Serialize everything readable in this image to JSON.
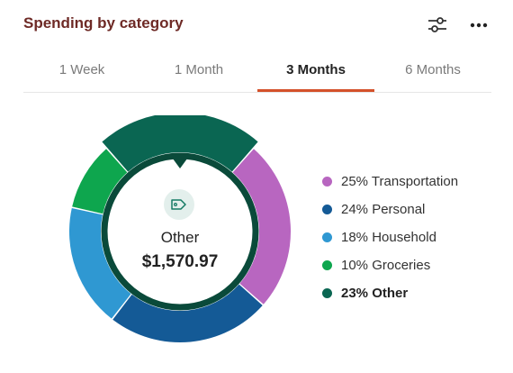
{
  "card": {
    "title": "Spending by category"
  },
  "tabs": [
    {
      "label": "1 Week",
      "active": false
    },
    {
      "label": "1 Month",
      "active": false
    },
    {
      "label": "3 Months",
      "active": true
    },
    {
      "label": "6 Months",
      "active": false
    }
  ],
  "selected": {
    "label": "Other",
    "amount": "$1,570.97",
    "icon": "tag-icon"
  },
  "legend": [
    {
      "text": "25% Transportation",
      "color": "#b866c0"
    },
    {
      "text": "24% Personal",
      "color": "#145a96"
    },
    {
      "text": "18% Household",
      "color": "#2f98d2"
    },
    {
      "text": "10% Groceries",
      "color": "#0ea64e"
    },
    {
      "text": "23% Other",
      "color": "#0a6652",
      "selected": true
    }
  ],
  "colors": {
    "accent": "#d4512a",
    "title": "#6e2a26",
    "ring_inner": "#0a4a3a"
  },
  "chart_data": {
    "type": "pie",
    "categories": [
      "Transportation",
      "Personal",
      "Household",
      "Groceries",
      "Other"
    ],
    "values": [
      25,
      24,
      18,
      10,
      23
    ],
    "colors": [
      "#b866c0",
      "#145a96",
      "#2f98d2",
      "#0ea64e",
      "#0a6652"
    ],
    "selected": "Other"
  }
}
